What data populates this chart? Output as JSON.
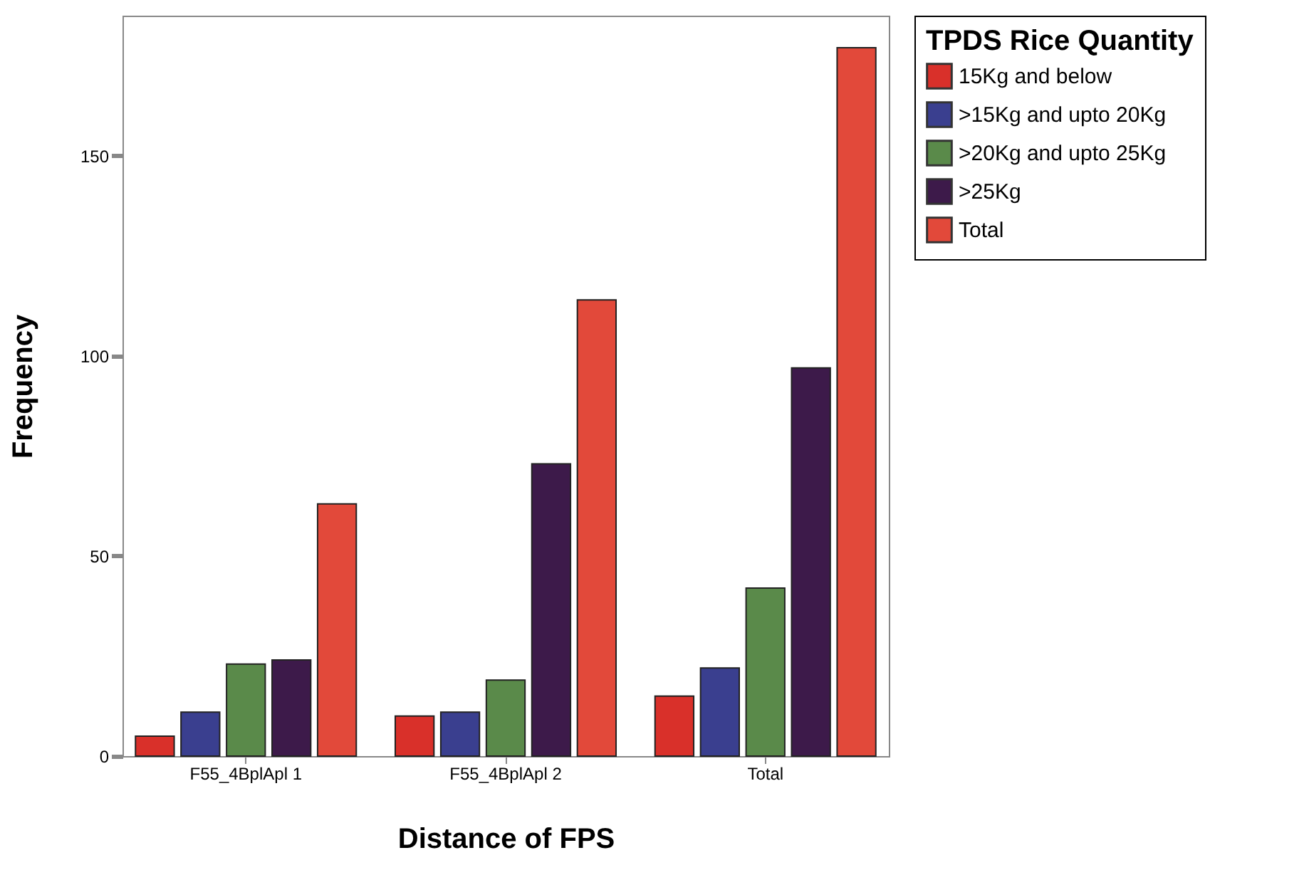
{
  "chart_data": {
    "type": "bar",
    "xlabel": "Distance of FPS",
    "ylabel": "Frequency",
    "legend_title": "TPDS Rice Quantity",
    "categories": [
      "F55_4BplApl 1",
      "F55_4BplApl 2",
      "Total"
    ],
    "series": [
      {
        "name": "15Kg and below",
        "color": "#d9302a",
        "values": [
          5,
          10,
          15
        ]
      },
      {
        "name": ">15Kg and upto 20Kg",
        "color": "#3a3f8f",
        "values": [
          11,
          11,
          22
        ]
      },
      {
        "name": ">20Kg and upto 25Kg",
        "color": "#5a8a4a",
        "values": [
          23,
          19,
          42
        ]
      },
      {
        "name": ">25Kg",
        "color": "#3d1a4a",
        "values": [
          24,
          73,
          97
        ]
      },
      {
        "name": "Total",
        "color": "#e2493a",
        "values": [
          63,
          114,
          177
        ]
      }
    ],
    "ylim": [
      0,
      185
    ],
    "yticks": [
      0,
      50,
      100,
      150
    ],
    "grid": false,
    "legend": "top right"
  }
}
